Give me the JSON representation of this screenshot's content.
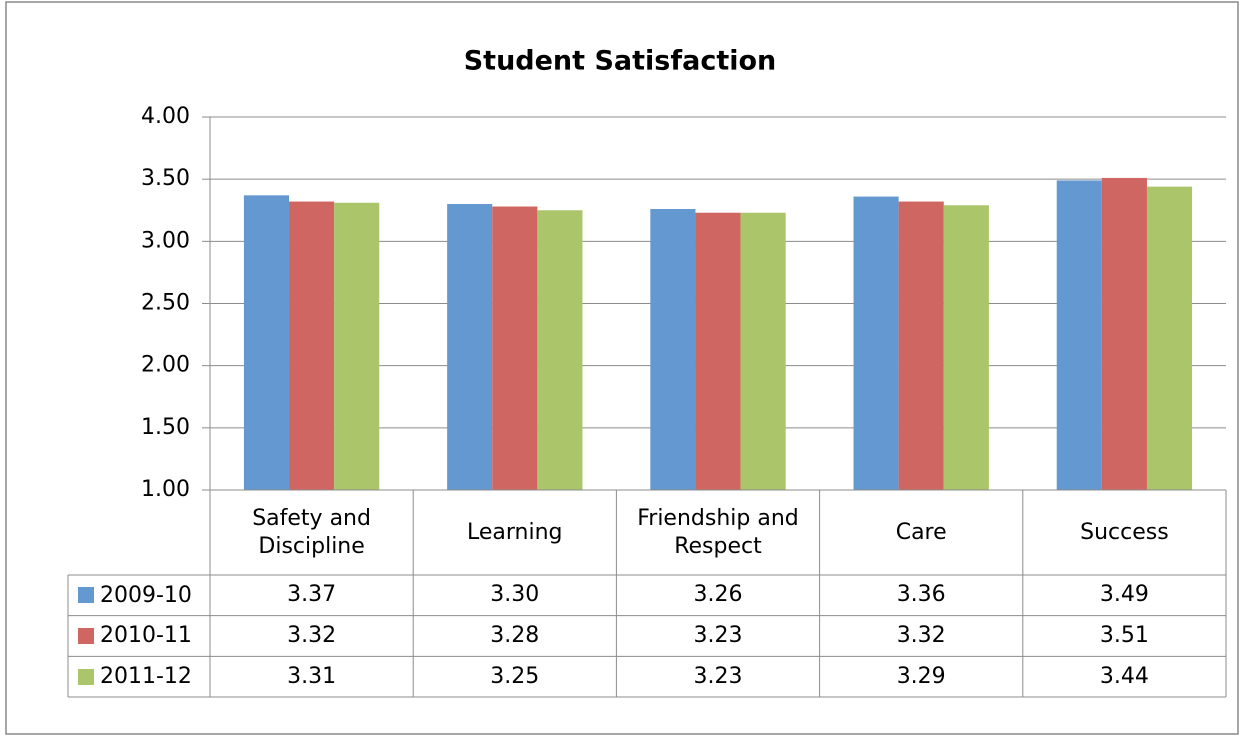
{
  "chart_data": {
    "type": "bar",
    "title": "Student Satisfaction",
    "categories": [
      "Safety and Discipline",
      "Learning",
      "Friendship and Respect",
      "Care",
      "Success"
    ],
    "series": [
      {
        "name": "2009-10",
        "color": "#6398d0",
        "values": [
          3.37,
          3.3,
          3.26,
          3.36,
          3.49
        ],
        "value_labels": [
          "3.37",
          "3.30",
          "3.26",
          "3.36",
          "3.49"
        ]
      },
      {
        "name": "2010-11",
        "color": "#cf6661",
        "values": [
          3.32,
          3.28,
          3.23,
          3.32,
          3.51
        ],
        "value_labels": [
          "3.32",
          "3.28",
          "3.23",
          "3.32",
          "3.51"
        ]
      },
      {
        "name": "2011-12",
        "color": "#abc56b",
        "values": [
          3.31,
          3.25,
          3.23,
          3.29,
          3.44
        ],
        "value_labels": [
          "3.31",
          "3.25",
          "3.23",
          "3.29",
          "3.44"
        ]
      }
    ],
    "ylim": [
      1,
      4
    ],
    "yticks": [
      {
        "value": 1,
        "label": "1.00"
      },
      {
        "value": 1.5,
        "label": "1.50"
      },
      {
        "value": 2,
        "label": "2.00"
      },
      {
        "value": 2.5,
        "label": "2.50"
      },
      {
        "value": 3,
        "label": "3.00"
      },
      {
        "value": 3.5,
        "label": "3.50"
      },
      {
        "value": 4,
        "label": "4.00"
      }
    ],
    "grid": true,
    "data_table": true
  }
}
